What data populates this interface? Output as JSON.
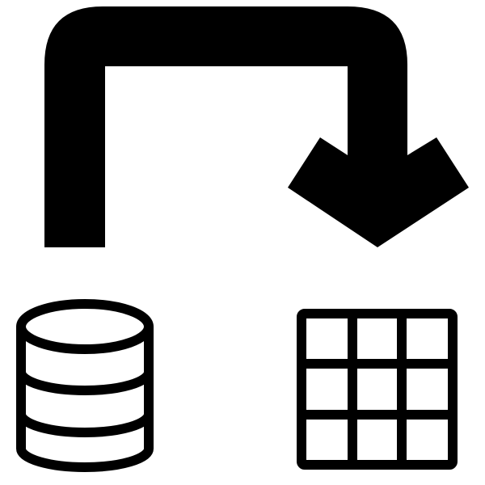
{
  "icons": {
    "arrow": "curved-transfer-arrow-icon",
    "source": "database-icon",
    "target": "table-grid-icon"
  },
  "colors": {
    "foreground": "#000000",
    "background": "#ffffff"
  }
}
